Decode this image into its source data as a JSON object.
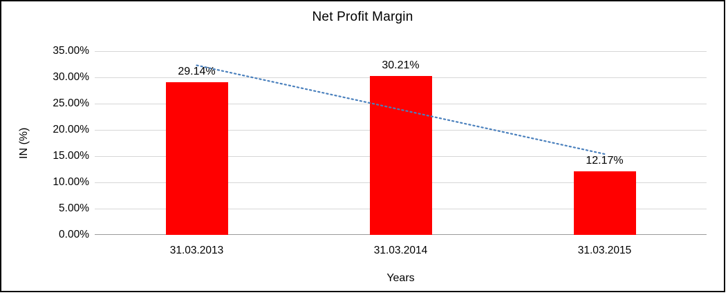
{
  "chart_data": {
    "type": "bar",
    "title": "Net Profit Margin",
    "xlabel": "Years",
    "ylabel": "IN (%)",
    "categories": [
      "31.03.2013",
      "31.03.2014",
      "31.03.2015"
    ],
    "values": [
      29.14,
      30.21,
      12.17
    ],
    "data_labels": [
      "29.14%",
      "30.21%",
      "12.17%"
    ],
    "ylim": [
      0,
      35
    ],
    "ytick_step": 5,
    "ytick_labels": [
      "0.00%",
      "5.00%",
      "10.00%",
      "15.00%",
      "20.00%",
      "25.00%",
      "30.00%",
      "35.00%"
    ],
    "grid": true,
    "legend": "none",
    "bar_color": "#ff0000",
    "gridline_color": "#d6d6d6",
    "trendline": {
      "style": "dotted",
      "color": "#4a80bd",
      "start_value": 32.3,
      "end_value": 15.4
    }
  }
}
